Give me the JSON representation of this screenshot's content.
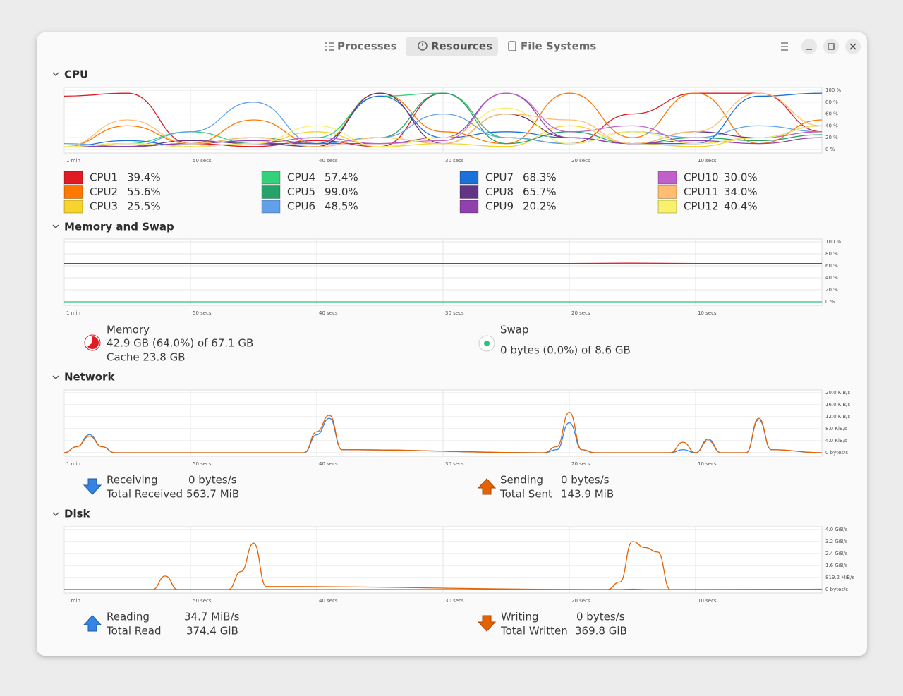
{
  "tabs": [
    "Processes",
    "Resources",
    "File Systems"
  ],
  "x_axis": {
    "lim": [
      60,
      0
    ],
    "ticks": [
      {
        "value": 60,
        "label": "1 min"
      },
      {
        "value": 50,
        "label": "50 secs"
      },
      {
        "value": 40,
        "label": "40 secs"
      },
      {
        "value": 30,
        "label": "30 secs"
      },
      {
        "value": 20,
        "label": "20 secs"
      },
      {
        "value": 10,
        "label": "10 secs"
      }
    ]
  },
  "cpu": {
    "title": "CPU",
    "ylim": [
      0,
      100
    ],
    "yticks": [
      {
        "value": 100,
        "label": "100 %"
      },
      {
        "value": 80,
        "label": "80 %"
      },
      {
        "value": 60,
        "label": "60 %"
      },
      {
        "value": 40,
        "label": "40 %"
      },
      {
        "value": 20,
        "label": "20 %"
      },
      {
        "value": 0,
        "label": "0 %"
      }
    ],
    "x": [
      60,
      55,
      50,
      45,
      40,
      35,
      30,
      25,
      20,
      15,
      10,
      5,
      0
    ],
    "series": [
      {
        "name": "CPU1",
        "value_label": "39.4%",
        "color": "#e01b24",
        "values": [
          90,
          95,
          10,
          5,
          15,
          5,
          95,
          20,
          10,
          60,
          95,
          95,
          30
        ]
      },
      {
        "name": "CPU2",
        "value_label": "55.6%",
        "color": "#ff7800",
        "values": [
          5,
          40,
          10,
          50,
          10,
          95,
          30,
          10,
          95,
          20,
          95,
          10,
          50
        ]
      },
      {
        "name": "CPU3",
        "value_label": "25.5%",
        "color": "#f6d32d",
        "values": [
          5,
          10,
          5,
          10,
          30,
          5,
          10,
          5,
          40,
          10,
          5,
          20,
          30
        ]
      },
      {
        "name": "CPU4",
        "value_label": "57.4%",
        "color": "#33d17a",
        "values": [
          5,
          10,
          30,
          10,
          20,
          90,
          95,
          20,
          10,
          30,
          10,
          20,
          40
        ]
      },
      {
        "name": "CPU5",
        "value_label": "99.0%",
        "color": "#26a269",
        "values": [
          5,
          5,
          10,
          20,
          10,
          20,
          95,
          10,
          30,
          10,
          20,
          15,
          25
        ]
      },
      {
        "name": "CPU6",
        "value_label": "48.5%",
        "color": "#62a0ea",
        "values": [
          10,
          5,
          30,
          80,
          10,
          20,
          60,
          20,
          10,
          30,
          20,
          40,
          30
        ]
      },
      {
        "name": "CPU7",
        "value_label": "68.3%",
        "color": "#1c71d8",
        "values": [
          5,
          15,
          5,
          10,
          10,
          90,
          20,
          30,
          20,
          10,
          10,
          90,
          95
        ]
      },
      {
        "name": "CPU8",
        "value_label": "65.7%",
        "color": "#613583",
        "values": [
          5,
          5,
          15,
          10,
          5,
          95,
          10,
          60,
          20,
          10,
          30,
          20,
          40
        ]
      },
      {
        "name": "CPU9",
        "value_label": "20.2%",
        "color": "#9141ac",
        "values": [
          5,
          5,
          10,
          15,
          10,
          10,
          20,
          95,
          20,
          10,
          15,
          10,
          20
        ]
      },
      {
        "name": "CPU10",
        "value_label": "30.0%",
        "color": "#c061cb",
        "values": [
          5,
          10,
          5,
          10,
          20,
          10,
          15,
          95,
          30,
          40,
          10,
          20,
          30
        ]
      },
      {
        "name": "CPU11",
        "value_label": "34.0%",
        "color": "#ffbe6f",
        "values": [
          5,
          50,
          10,
          20,
          5,
          20,
          10,
          60,
          50,
          10,
          30,
          95,
          40
        ]
      },
      {
        "name": "CPU12",
        "value_label": "40.4%",
        "color": "#f9f06b",
        "values": [
          5,
          10,
          5,
          10,
          40,
          5,
          20,
          70,
          10,
          30,
          10,
          20,
          40
        ]
      }
    ]
  },
  "memory": {
    "title": "Memory and Swap",
    "ylim": [
      0,
      100
    ],
    "yticks": [
      {
        "value": 100,
        "label": "100 %"
      },
      {
        "value": 80,
        "label": "80 %"
      },
      {
        "value": 60,
        "label": "60 %"
      },
      {
        "value": 40,
        "label": "40 %"
      },
      {
        "value": 20,
        "label": "20 %"
      },
      {
        "value": 0,
        "label": "0 %"
      }
    ],
    "x": [
      60,
      50,
      40,
      30,
      20,
      15,
      10,
      0
    ],
    "series": [
      {
        "color": "#e01b24",
        "values": [
          64,
          64,
          64,
          64,
          64,
          64.5,
          64,
          64
        ]
      },
      {
        "color": "#2ec27e",
        "values": [
          0,
          0,
          0,
          0,
          0,
          0,
          0,
          0
        ]
      }
    ],
    "memory_info": {
      "label": "Memory",
      "usage": "42.9 GB (64.0%) of 67.1 GB",
      "usage_percent": 64,
      "cache": "Cache 23.8 GB"
    },
    "swap_info": {
      "label": "Swap",
      "usage": "0 bytes (0.0%) of 8.6 GB"
    }
  },
  "network": {
    "title": "Network",
    "ylim": [
      0,
      20
    ],
    "yticks": [
      {
        "value": 20,
        "label": "20.0 KiB/s"
      },
      {
        "value": 16,
        "label": "16.0 KiB/s"
      },
      {
        "value": 12,
        "label": "12.0 KiB/s"
      },
      {
        "value": 8,
        "label": "8.0 KiB/s"
      },
      {
        "value": 4,
        "label": "4.0 KiB/s"
      },
      {
        "value": 0,
        "label": "0 bytes/s"
      }
    ],
    "x": [
      60,
      59,
      58,
      57,
      56,
      41,
      40,
      39,
      38,
      22,
      21,
      20,
      19,
      18,
      12,
      11,
      10,
      9,
      8,
      6,
      5,
      4,
      0
    ],
    "series": [
      {
        "color": "#3584e4",
        "values": [
          0,
          2,
          6,
          2,
          0,
          0,
          6,
          11.5,
          1,
          0,
          1,
          10,
          1,
          0,
          0,
          1,
          0,
          4.5,
          0,
          0,
          11,
          1,
          0
        ]
      },
      {
        "color": "#e66100",
        "values": [
          0,
          2,
          5.5,
          2,
          0,
          0,
          7,
          12.5,
          1,
          0,
          2,
          13.5,
          1,
          0,
          0,
          3.5,
          0,
          4,
          0,
          0,
          11.5,
          1,
          0
        ]
      }
    ],
    "receiving": {
      "label": "Receiving",
      "rate": "0 bytes/s",
      "total_label": "Total Received",
      "total": "563.7 MiB"
    },
    "sending": {
      "label": "Sending",
      "rate": "0 bytes/s",
      "total_label": "Total Sent",
      "total": "143.9 MiB"
    }
  },
  "disk": {
    "title": "Disk",
    "ylim": [
      0,
      4
    ],
    "yticks": [
      {
        "value": 4,
        "label": "4.0 GiB/s"
      },
      {
        "value": 3.2,
        "label": "3.2 GiB/s"
      },
      {
        "value": 2.4,
        "label": "2.4 GiB/s"
      },
      {
        "value": 1.6,
        "label": "1.6 GiB/s"
      },
      {
        "value": 0.8,
        "label": "819.2 MiB/s"
      },
      {
        "value": 0,
        "label": "0 bytes/s"
      }
    ],
    "x": [
      60,
      53,
      52,
      51,
      47,
      46,
      45,
      44,
      17,
      16,
      15,
      14,
      13,
      12,
      0
    ],
    "series": [
      {
        "color": "#3584e4",
        "values": [
          0,
          0,
          0,
          0,
          0,
          0,
          0,
          0,
          0,
          0,
          0.02,
          0,
          0,
          0,
          0.02
        ]
      },
      {
        "color": "#e66100",
        "values": [
          0,
          0,
          0.9,
          0,
          0,
          1.2,
          3.1,
          0.2,
          0,
          0.5,
          3.2,
          2.8,
          2.5,
          0,
          0
        ]
      }
    ],
    "reading": {
      "label": "Reading",
      "rate": "34.7 MiB/s",
      "total_label": "Total Read",
      "total": "374.4 GiB"
    },
    "writing": {
      "label": "Writing",
      "rate": "0 bytes/s",
      "total_label": "Total Written",
      "total": "369.8 GiB"
    }
  }
}
